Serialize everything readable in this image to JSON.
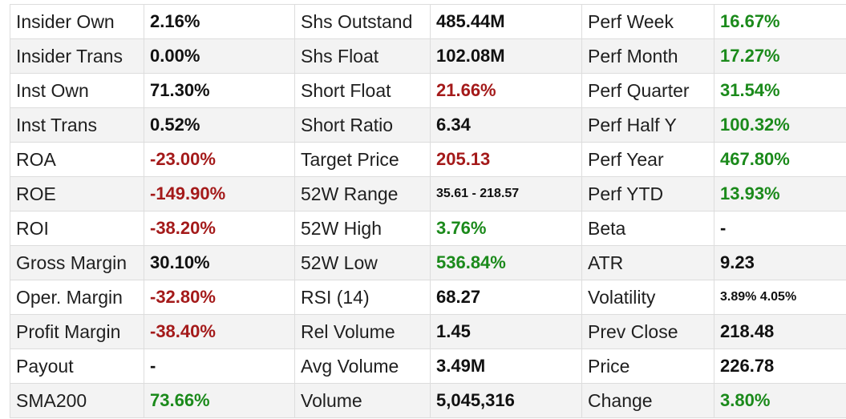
{
  "colors": {
    "positive": "#1b8a1b",
    "negative": "#a41a1a",
    "neutral": "#111111"
  },
  "rows": [
    {
      "cells": [
        {
          "label": "Insider Own",
          "value": "2.16%",
          "tone": "neutral"
        },
        {
          "label": "Shs Outstand",
          "value": "485.44M",
          "tone": "neutral"
        },
        {
          "label": "Perf Week",
          "value": "16.67%",
          "tone": "pos"
        }
      ]
    },
    {
      "cells": [
        {
          "label": "Insider Trans",
          "value": "0.00%",
          "tone": "neutral"
        },
        {
          "label": "Shs Float",
          "value": "102.08M",
          "tone": "neutral"
        },
        {
          "label": "Perf Month",
          "value": "17.27%",
          "tone": "pos"
        }
      ]
    },
    {
      "cells": [
        {
          "label": "Inst Own",
          "value": "71.30%",
          "tone": "neutral"
        },
        {
          "label": "Short Float",
          "value": "21.66%",
          "tone": "neg"
        },
        {
          "label": "Perf Quarter",
          "value": "31.54%",
          "tone": "pos"
        }
      ]
    },
    {
      "cells": [
        {
          "label": "Inst Trans",
          "value": "0.52%",
          "tone": "neutral"
        },
        {
          "label": "Short Ratio",
          "value": "6.34",
          "tone": "neutral"
        },
        {
          "label": "Perf Half Y",
          "value": "100.32%",
          "tone": "pos"
        }
      ]
    },
    {
      "cells": [
        {
          "label": "ROA",
          "value": "-23.00%",
          "tone": "neg"
        },
        {
          "label": "Target Price",
          "value": "205.13",
          "tone": "neg"
        },
        {
          "label": "Perf Year",
          "value": "467.80%",
          "tone": "pos"
        }
      ]
    },
    {
      "cells": [
        {
          "label": "ROE",
          "value": "-149.90%",
          "tone": "neg"
        },
        {
          "label": "52W Range",
          "value": "35.61 - 218.57",
          "tone": "neutral",
          "small": true
        },
        {
          "label": "Perf YTD",
          "value": "13.93%",
          "tone": "pos"
        }
      ]
    },
    {
      "cells": [
        {
          "label": "ROI",
          "value": "-38.20%",
          "tone": "neg"
        },
        {
          "label": "52W High",
          "value": "3.76%",
          "tone": "pos"
        },
        {
          "label": "Beta",
          "value": "-",
          "tone": "neutral"
        }
      ]
    },
    {
      "cells": [
        {
          "label": "Gross Margin",
          "value": "30.10%",
          "tone": "neutral"
        },
        {
          "label": "52W Low",
          "value": "536.84%",
          "tone": "pos"
        },
        {
          "label": "ATR",
          "value": "9.23",
          "tone": "neutral"
        }
      ]
    },
    {
      "cells": [
        {
          "label": "Oper. Margin",
          "value": "-32.80%",
          "tone": "neg"
        },
        {
          "label": "RSI (14)",
          "value": "68.27",
          "tone": "neutral"
        },
        {
          "label": "Volatility",
          "value": "3.89% 4.05%",
          "tone": "neutral",
          "small": true
        }
      ]
    },
    {
      "cells": [
        {
          "label": "Profit Margin",
          "value": "-38.40%",
          "tone": "neg"
        },
        {
          "label": "Rel Volume",
          "value": "1.45",
          "tone": "neutral"
        },
        {
          "label": "Prev Close",
          "value": "218.48",
          "tone": "neutral"
        }
      ]
    },
    {
      "cells": [
        {
          "label": "Payout",
          "value": "-",
          "tone": "neutral"
        },
        {
          "label": "Avg Volume",
          "value": "3.49M",
          "tone": "neutral"
        },
        {
          "label": "Price",
          "value": "226.78",
          "tone": "neutral"
        }
      ]
    },
    {
      "cells": [
        {
          "label": "SMA200",
          "value": "73.66%",
          "tone": "pos"
        },
        {
          "label": "Volume",
          "value": "5,045,316",
          "tone": "neutral"
        },
        {
          "label": "Change",
          "value": "3.80%",
          "tone": "pos"
        }
      ]
    }
  ]
}
